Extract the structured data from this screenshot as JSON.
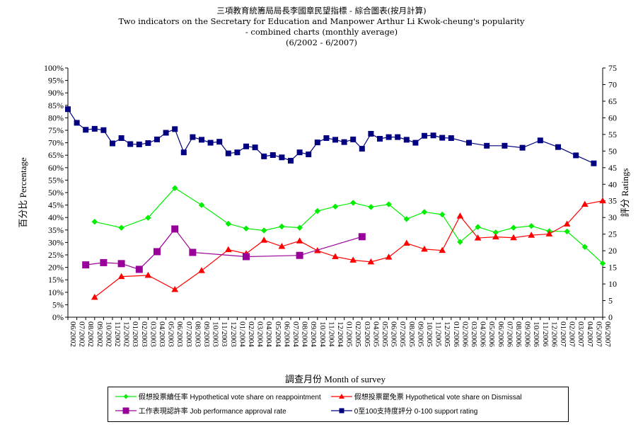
{
  "title": {
    "line1": "三項教育統籌局局長李國章民望指標 - 綜合圖表(按月計算)",
    "line2": "Two indicators on the Secretary for Education and Manpower Arthur Li Kwok-cheung's popularity",
    "line3": "- combined charts (monthly average)",
    "line4": "(6/2002 - 6/2007)"
  },
  "chart_data": {
    "type": "line",
    "title": "三項教育統籌局局長李國章民望指標 - 綜合圖表(按月計算)",
    "xlabel": "調查月份 Month of survey",
    "ylabel_left": "百分比 Percentage",
    "ylabel_right": "評分 Ratings",
    "ylim_left": [
      0,
      100
    ],
    "ylim_right": [
      0,
      75
    ],
    "left_ticks": [
      "0%",
      "5%",
      "10%",
      "15%",
      "20%",
      "25%",
      "30%",
      "35%",
      "40%",
      "45%",
      "50%",
      "55%",
      "60%",
      "65%",
      "70%",
      "75%",
      "80%",
      "85%",
      "90%",
      "95%",
      "100%"
    ],
    "right_ticks": [
      "0",
      "5",
      "10",
      "15",
      "20",
      "25",
      "30",
      "35",
      "40",
      "45",
      "50",
      "55",
      "60",
      "65",
      "70",
      "75"
    ],
    "categories": [
      "06/2002",
      "07/2002",
      "08/2002",
      "09/2002",
      "10/2002",
      "11/2002",
      "12/2002",
      "01/2003",
      "02/2003",
      "03/2003",
      "04/2003",
      "05/2003",
      "06/2003",
      "07/2003",
      "08/2003",
      "09/2003",
      "10/2003",
      "11/2003",
      "12/2003",
      "01/2004",
      "02/2004",
      "03/2004",
      "04/2004",
      "05/2004",
      "06/2004",
      "07/2004",
      "08/2004",
      "09/2004",
      "10/2004",
      "11/2004",
      "12/2004",
      "01/2005",
      "02/2005",
      "03/2005",
      "04/2005",
      "05/2005",
      "06/2005",
      "07/2005",
      "08/2005",
      "09/2005",
      "10/2005",
      "11/2005",
      "12/2005",
      "01/2006",
      "02/2006",
      "03/2006",
      "04/2006",
      "05/2006",
      "06/2006",
      "07/2006",
      "08/2006",
      "09/2006",
      "10/2006",
      "11/2006",
      "12/2006",
      "01/2007",
      "02/2007",
      "03/2007",
      "04/2007",
      "05/2007",
      "06/2007"
    ],
    "tick_labels": [
      "06/2002",
      "07/2002",
      "08/2002",
      "09/2002",
      "10/2002",
      "11/2002",
      "12/2002",
      "01/2003",
      "02/2003",
      "03/2003",
      "04/2003",
      "05/2003",
      "06/2003",
      "07/2003",
      "08/2003",
      "09/2003",
      "10/2003",
      "11/2003",
      "12/2003",
      "01/2004",
      "02/2004",
      "03/2004",
      "04/2004",
      "05/2004",
      "06/2004",
      "07/2004",
      "08/2004",
      "09/2004",
      "10/2004",
      "11/2004",
      "12/2004",
      "01/2005",
      "02/2005",
      "03/2005",
      "04/2005",
      "05/2005",
      "06/2005",
      "07/2005",
      "08/2005",
      "09/2005",
      "10/2005",
      "11/2005",
      "12/2005",
      "01/2006",
      "02/2006",
      "03/2006",
      "04/2006",
      "05/2006",
      "06/2006",
      "07/2006",
      "08/2006",
      "09/2006",
      "10/2006",
      "11/2006",
      "12/2006",
      "01/2007",
      "02/2007",
      "03/2007",
      "04/2007",
      "05/2007",
      "06/2007"
    ],
    "series": [
      {
        "name": "假想投票續任率 Hypothetical vote share on reappointment",
        "color": "#00ee00",
        "marker": "diamond",
        "axis": "left",
        "points": [
          [
            "09/2002",
            38.3
          ],
          [
            "12/2002",
            35.9
          ],
          [
            "03/2003",
            39.9
          ],
          [
            "06/2003",
            51.8
          ],
          [
            "09/2003",
            45.0
          ],
          [
            "12/2003",
            37.5
          ],
          [
            "02/2004",
            35.6
          ],
          [
            "04/2004",
            34.8
          ],
          [
            "06/2004",
            36.4
          ],
          [
            "08/2004",
            35.9
          ],
          [
            "10/2004",
            42.6
          ],
          [
            "12/2004",
            44.4
          ],
          [
            "02/2005",
            45.9
          ],
          [
            "04/2005",
            44.2
          ],
          [
            "06/2005",
            45.3
          ],
          [
            "08/2005",
            39.4
          ],
          [
            "10/2005",
            42.2
          ],
          [
            "12/2005",
            41.2
          ],
          [
            "02/2006",
            30.2
          ],
          [
            "04/2006",
            36.2
          ],
          [
            "06/2006",
            34.0
          ],
          [
            "08/2006",
            35.9
          ],
          [
            "10/2006",
            36.6
          ],
          [
            "12/2006",
            34.5
          ],
          [
            "02/2007",
            34.4
          ],
          [
            "04/2007",
            28.2
          ],
          [
            "06/2007",
            21.6
          ]
        ]
      },
      {
        "name": "假想投票罷免票 Hypothetical vote share on Dismissal",
        "color": "#ff0000",
        "marker": "triangle",
        "axis": "left",
        "points": [
          [
            "09/2002",
            8.0
          ],
          [
            "12/2002",
            16.3
          ],
          [
            "03/2003",
            16.8
          ],
          [
            "06/2003",
            11.1
          ],
          [
            "09/2003",
            18.7
          ],
          [
            "12/2003",
            27.1
          ],
          [
            "02/2004",
            25.5
          ],
          [
            "04/2004",
            30.9
          ],
          [
            "06/2004",
            28.4
          ],
          [
            "08/2004",
            30.6
          ],
          [
            "10/2004",
            26.7
          ],
          [
            "12/2004",
            24.3
          ],
          [
            "02/2005",
            22.9
          ],
          [
            "04/2005",
            22.2
          ],
          [
            "06/2005",
            24.1
          ],
          [
            "08/2005",
            29.7
          ],
          [
            "10/2005",
            27.3
          ],
          [
            "12/2005",
            26.8
          ],
          [
            "02/2006",
            40.6
          ],
          [
            "04/2006",
            31.8
          ],
          [
            "06/2006",
            32.2
          ],
          [
            "08/2006",
            31.9
          ],
          [
            "10/2006",
            32.9
          ],
          [
            "12/2006",
            33.4
          ],
          [
            "02/2007",
            37.4
          ],
          [
            "04/2007",
            45.3
          ],
          [
            "06/2007",
            46.7
          ]
        ]
      },
      {
        "name": "工作表現認許率 Job performance approval rate",
        "color": "#990099",
        "marker": "square",
        "axis": "left",
        "points": [
          [
            "08/2002",
            21.0
          ],
          [
            "10/2002",
            21.9
          ],
          [
            "12/2002",
            21.5
          ],
          [
            "02/2003",
            19.2
          ],
          [
            "04/2003",
            26.3
          ],
          [
            "06/2003",
            35.4
          ],
          [
            "08/2003",
            26.0
          ],
          [
            "02/2004",
            24.3
          ],
          [
            "08/2004",
            24.8
          ],
          [
            "03/2005",
            32.3
          ]
        ]
      },
      {
        "name": "0至100支持度評分 0-100 support rating",
        "color": "#000080",
        "marker": "square",
        "axis": "right",
        "points": [
          [
            "06/2002",
            62.6
          ],
          [
            "07/2002",
            58.5
          ],
          [
            "08/2002",
            56.4
          ],
          [
            "09/2002",
            56.7
          ],
          [
            "10/2002",
            56.3
          ],
          [
            "11/2002",
            52.3
          ],
          [
            "12/2002",
            53.9
          ],
          [
            "01/2003",
            52.1
          ],
          [
            "02/2003",
            52.0
          ],
          [
            "03/2003",
            52.4
          ],
          [
            "04/2003",
            53.5
          ],
          [
            "05/2003",
            55.5
          ],
          [
            "06/2003",
            56.6
          ],
          [
            "07/2003",
            49.6
          ],
          [
            "08/2003",
            54.2
          ],
          [
            "09/2003",
            53.4
          ],
          [
            "10/2003",
            52.5
          ],
          [
            "11/2003",
            52.8
          ],
          [
            "12/2003",
            49.3
          ],
          [
            "01/2004",
            49.6
          ],
          [
            "02/2004",
            51.4
          ],
          [
            "03/2004",
            51.1
          ],
          [
            "04/2004",
            48.4
          ],
          [
            "05/2004",
            48.8
          ],
          [
            "06/2004",
            48.1
          ],
          [
            "07/2004",
            47.1
          ],
          [
            "08/2004",
            49.6
          ],
          [
            "09/2004",
            49.0
          ],
          [
            "10/2004",
            52.6
          ],
          [
            "11/2004",
            53.9
          ],
          [
            "12/2004",
            53.4
          ],
          [
            "01/2005",
            52.7
          ],
          [
            "02/2005",
            53.5
          ],
          [
            "03/2005",
            50.7
          ],
          [
            "04/2005",
            55.2
          ],
          [
            "05/2005",
            53.7
          ],
          [
            "06/2005",
            54.2
          ],
          [
            "07/2005",
            54.2
          ],
          [
            "08/2005",
            53.4
          ],
          [
            "09/2005",
            52.5
          ],
          [
            "10/2005",
            54.6
          ],
          [
            "11/2005",
            54.7
          ],
          [
            "12/2005",
            54.0
          ],
          [
            "01/2006",
            53.9
          ],
          [
            "03/2006",
            52.5
          ],
          [
            "05/2006",
            51.6
          ],
          [
            "07/2006",
            51.6
          ],
          [
            "09/2006",
            51.0
          ],
          [
            "11/2006",
            53.2
          ],
          [
            "01/2007",
            51.2
          ],
          [
            "03/2007",
            48.7
          ],
          [
            "05/2007",
            46.3
          ]
        ]
      }
    ],
    "grid": false,
    "legend_position": "bottom"
  }
}
